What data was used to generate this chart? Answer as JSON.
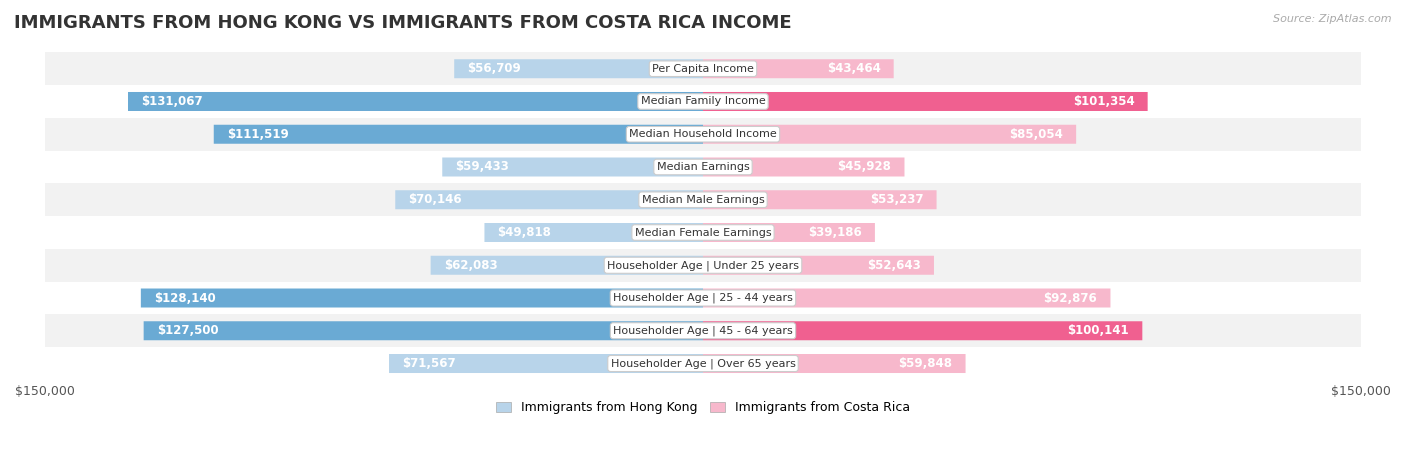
{
  "title": "IMMIGRANTS FROM HONG KONG VS IMMIGRANTS FROM COSTA RICA INCOME",
  "source": "Source: ZipAtlas.com",
  "categories": [
    "Per Capita Income",
    "Median Family Income",
    "Median Household Income",
    "Median Earnings",
    "Median Male Earnings",
    "Median Female Earnings",
    "Householder Age | Under 25 years",
    "Householder Age | 25 - 44 years",
    "Householder Age | 45 - 64 years",
    "Householder Age | Over 65 years"
  ],
  "hk_values": [
    56709,
    131067,
    111519,
    59433,
    70146,
    49818,
    62083,
    128140,
    127500,
    71567
  ],
  "cr_values": [
    43464,
    101354,
    85054,
    45928,
    53237,
    39186,
    52643,
    92876,
    100141,
    59848
  ],
  "hk_labels": [
    "$56,709",
    "$131,067",
    "$111,519",
    "$59,433",
    "$70,146",
    "$49,818",
    "$62,083",
    "$128,140",
    "$127,500",
    "$71,567"
  ],
  "cr_labels": [
    "$43,464",
    "$101,354",
    "$85,054",
    "$45,928",
    "$53,237",
    "$39,186",
    "$52,643",
    "$92,876",
    "$100,141",
    "$59,848"
  ],
  "hk_color_light": "#b8d4ea",
  "hk_color_dark": "#6aaad4",
  "cr_color_light": "#f7b8cc",
  "cr_color_dark": "#f06090",
  "dark_threshold": 100000,
  "max_val": 150000,
  "bar_height": 0.58,
  "row_bg_odd": "#f2f2f2",
  "row_bg_even": "#ffffff",
  "legend_hk": "Immigrants from Hong Kong",
  "legend_cr": "Immigrants from Costa Rica",
  "outside_label_color": "#555555",
  "inside_label_color": "#ffffff",
  "inside_threshold": 30000,
  "title_fontsize": 13,
  "label_fontsize": 8.5,
  "tick_fontsize": 9,
  "category_fontsize": 8.0,
  "source_fontsize": 8
}
